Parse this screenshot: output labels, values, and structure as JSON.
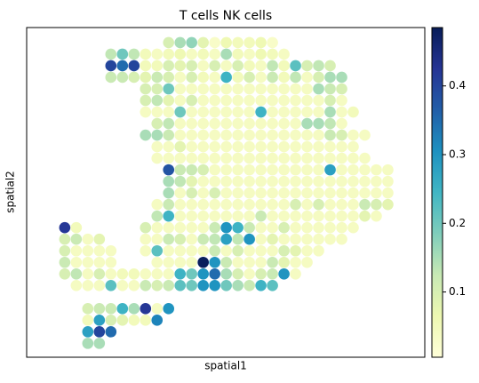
{
  "chart_data": {
    "type": "scatter",
    "title": "T cells   NK cells",
    "xlabel": "spatial1",
    "ylabel": "spatial2",
    "colormap": "YlGnBu",
    "xlim": [
      -3.3,
      31.2
    ],
    "ylim": [
      27.2,
      -1.3
    ],
    "clim": [
      0.005,
      0.485
    ],
    "cticks": [
      0.1,
      0.2,
      0.3,
      0.4
    ],
    "x": [
      9,
      10,
      11,
      12,
      13,
      14,
      15,
      16,
      17,
      18,
      4,
      5,
      6,
      7,
      8,
      9,
      10,
      11,
      12,
      13,
      14,
      15,
      16,
      17,
      18,
      19,
      4,
      5,
      6,
      7,
      8,
      9,
      10,
      11,
      12,
      13,
      14,
      15,
      16,
      17,
      18,
      19,
      20,
      21,
      22,
      23,
      4,
      5,
      6,
      7,
      8,
      9,
      10,
      11,
      12,
      13,
      14,
      15,
      16,
      17,
      18,
      19,
      20,
      21,
      22,
      23,
      24,
      7,
      8,
      9,
      10,
      11,
      12,
      13,
      14,
      15,
      16,
      17,
      18,
      19,
      20,
      21,
      22,
      23,
      24,
      7,
      8,
      9,
      10,
      11,
      12,
      13,
      14,
      15,
      16,
      17,
      18,
      19,
      20,
      21,
      22,
      23,
      24,
      7,
      8,
      9,
      10,
      11,
      12,
      13,
      14,
      15,
      16,
      17,
      18,
      19,
      20,
      21,
      22,
      23,
      24,
      25,
      8,
      9,
      10,
      11,
      12,
      13,
      14,
      15,
      16,
      17,
      18,
      19,
      20,
      21,
      22,
      23,
      24,
      7,
      8,
      9,
      10,
      11,
      12,
      13,
      14,
      15,
      16,
      17,
      18,
      19,
      20,
      21,
      22,
      23,
      24,
      25,
      26,
      8,
      9,
      10,
      11,
      12,
      13,
      14,
      15,
      16,
      17,
      18,
      19,
      20,
      21,
      22,
      23,
      24,
      25,
      8,
      9,
      10,
      11,
      12,
      13,
      14,
      15,
      16,
      17,
      18,
      19,
      20,
      21,
      22,
      23,
      24,
      25,
      26,
      9,
      10,
      11,
      12,
      13,
      14,
      15,
      16,
      17,
      18,
      19,
      20,
      21,
      22,
      23,
      24,
      25,
      26,
      27,
      28,
      9,
      10,
      11,
      12,
      13,
      14,
      15,
      16,
      17,
      18,
      19,
      20,
      21,
      22,
      23,
      24,
      25,
      26,
      27,
      28,
      9,
      10,
      11,
      12,
      13,
      14,
      15,
      16,
      17,
      18,
      19,
      20,
      21,
      22,
      23,
      24,
      25,
      26,
      27,
      28,
      8,
      9,
      10,
      11,
      12,
      13,
      14,
      15,
      16,
      17,
      18,
      19,
      20,
      21,
      22,
      23,
      24,
      25,
      26,
      27,
      28,
      8,
      9,
      10,
      11,
      12,
      13,
      14,
      15,
      16,
      17,
      18,
      19,
      20,
      21,
      22,
      23,
      24,
      25,
      26,
      27,
      0,
      1,
      7,
      8,
      9,
      10,
      11,
      12,
      13,
      14,
      15,
      16,
      17,
      18,
      19,
      20,
      21,
      22,
      23,
      24,
      25,
      0,
      1,
      2,
      3,
      7,
      8,
      9,
      10,
      11,
      12,
      13,
      14,
      15,
      16,
      17,
      18,
      19,
      20,
      21,
      22,
      23,
      24,
      0,
      1,
      2,
      3,
      4,
      7,
      8,
      9,
      10,
      11,
      12,
      13,
      14,
      15,
      16,
      17,
      18,
      19,
      20,
      21,
      22,
      0,
      1,
      2,
      3,
      4,
      8,
      9,
      10,
      11,
      12,
      13,
      14,
      15,
      16,
      17,
      18,
      19,
      20,
      21,
      0,
      1,
      2,
      3,
      4,
      5,
      6,
      7,
      8,
      9,
      10,
      11,
      12,
      13,
      14,
      15,
      16,
      17,
      18,
      19,
      20,
      1,
      2,
      3,
      4,
      5,
      6,
      7,
      8,
      9,
      10,
      11,
      12,
      13,
      14,
      15,
      16,
      17,
      18,
      2,
      3,
      4,
      5,
      6,
      7,
      8,
      9,
      2,
      3,
      4,
      5,
      6,
      7,
      8,
      2,
      3,
      4,
      2,
      3
    ],
    "y": [
      0,
      0,
      0,
      0,
      0,
      0,
      0,
      0,
      0,
      0,
      1,
      1,
      1,
      1,
      1,
      1,
      1,
      1,
      1,
      1,
      1,
      1,
      1,
      1,
      1,
      1,
      2,
      2,
      2,
      2,
      2,
      2,
      2,
      2,
      2,
      2,
      2,
      2,
      2,
      2,
      2,
      2,
      2,
      2,
      2,
      2,
      3,
      3,
      3,
      3,
      3,
      3,
      3,
      3,
      3,
      3,
      3,
      3,
      3,
      3,
      3,
      3,
      3,
      3,
      3,
      3,
      3,
      4,
      4,
      4,
      4,
      4,
      4,
      4,
      4,
      4,
      4,
      4,
      4,
      4,
      4,
      4,
      4,
      4,
      4,
      5,
      5,
      5,
      5,
      5,
      5,
      5,
      5,
      5,
      5,
      5,
      5,
      5,
      5,
      5,
      5,
      5,
      5,
      6,
      6,
      6,
      6,
      6,
      6,
      6,
      6,
      6,
      6,
      6,
      6,
      6,
      6,
      6,
      6,
      6,
      6,
      6,
      7,
      7,
      7,
      7,
      7,
      7,
      7,
      7,
      7,
      7,
      7,
      7,
      7,
      7,
      7,
      7,
      7,
      8,
      8,
      8,
      8,
      8,
      8,
      8,
      8,
      8,
      8,
      8,
      8,
      8,
      8,
      8,
      8,
      8,
      8,
      8,
      8,
      9,
      9,
      9,
      9,
      9,
      9,
      9,
      9,
      9,
      9,
      9,
      9,
      9,
      9,
      9,
      9,
      9,
      9,
      10,
      10,
      10,
      10,
      10,
      10,
      10,
      10,
      10,
      10,
      10,
      10,
      10,
      10,
      10,
      10,
      10,
      10,
      10,
      11,
      11,
      11,
      11,
      11,
      11,
      11,
      11,
      11,
      11,
      11,
      11,
      11,
      11,
      11,
      11,
      11,
      11,
      11,
      11,
      12,
      12,
      12,
      12,
      12,
      12,
      12,
      12,
      12,
      12,
      12,
      12,
      12,
      12,
      12,
      12,
      12,
      12,
      12,
      12,
      13,
      13,
      13,
      13,
      13,
      13,
      13,
      13,
      13,
      13,
      13,
      13,
      13,
      13,
      13,
      13,
      13,
      13,
      13,
      13,
      14,
      14,
      14,
      14,
      14,
      14,
      14,
      14,
      14,
      14,
      14,
      14,
      14,
      14,
      14,
      14,
      14,
      14,
      14,
      14,
      14,
      15,
      15,
      15,
      15,
      15,
      15,
      15,
      15,
      15,
      15,
      15,
      15,
      15,
      15,
      15,
      15,
      15,
      15,
      15,
      15,
      16,
      16,
      16,
      16,
      16,
      16,
      16,
      16,
      16,
      16,
      16,
      16,
      16,
      16,
      16,
      16,
      16,
      16,
      16,
      16,
      16,
      17,
      17,
      17,
      17,
      17,
      17,
      17,
      17,
      17,
      17,
      17,
      17,
      17,
      17,
      17,
      17,
      17,
      17,
      17,
      17,
      17,
      17,
      18,
      18,
      18,
      18,
      18,
      18,
      18,
      18,
      18,
      18,
      18,
      18,
      18,
      18,
      18,
      18,
      18,
      18,
      18,
      18,
      18,
      19,
      19,
      19,
      19,
      19,
      19,
      19,
      19,
      19,
      19,
      19,
      19,
      19,
      19,
      19,
      19,
      19,
      19,
      19,
      20,
      20,
      20,
      20,
      20,
      20,
      20,
      20,
      20,
      20,
      20,
      20,
      20,
      20,
      20,
      20,
      20,
      20,
      20,
      20,
      20,
      21,
      21,
      21,
      21,
      21,
      21,
      21,
      21,
      21,
      21,
      21,
      21,
      21,
      21,
      21,
      21,
      21,
      21,
      23,
      23,
      23,
      23,
      23,
      23,
      23,
      23,
      24,
      24,
      24,
      24,
      24,
      24,
      24,
      25,
      25,
      25,
      26,
      26
    ],
    "values": [
      0.1,
      0.15,
      0.17,
      0.08,
      0.03,
      0.06,
      0.05,
      0.05,
      0.06,
      0.03,
      0.13,
      0.2,
      0.13,
      0.05,
      0.04,
      0.05,
      0.06,
      0.04,
      0.05,
      0.04,
      0.15,
      0.05,
      0.04,
      0.06,
      0.05,
      0.04,
      0.4,
      0.35,
      0.4,
      0.05,
      0.05,
      0.1,
      0.08,
      0.1,
      0.04,
      0.1,
      0.04,
      0.1,
      0.05,
      0.04,
      0.13,
      0.05,
      0.22,
      0.1,
      0.13,
      0.1,
      0.12,
      0.12,
      0.1,
      0.08,
      0.12,
      0.1,
      0.04,
      0.1,
      0.05,
      0.04,
      0.25,
      0.05,
      0.1,
      0.04,
      0.12,
      0.05,
      0.13,
      0.04,
      0.1,
      0.15,
      0.15,
      0.1,
      0.1,
      0.2,
      0.04,
      0.04,
      0.04,
      0.04,
      0.04,
      0.04,
      0.04,
      0.04,
      0.04,
      0.04,
      0.04,
      0.04,
      0.15,
      0.12,
      0.1,
      0.1,
      0.13,
      0.08,
      0.04,
      0.1,
      0.04,
      0.04,
      0.04,
      0.04,
      0.04,
      0.04,
      0.04,
      0.04,
      0.04,
      0.04,
      0.04,
      0.1,
      0.04,
      0.04,
      0.04,
      0.04,
      0.2,
      0.04,
      0.04,
      0.04,
      0.04,
      0.04,
      0.04,
      0.25,
      0.04,
      0.04,
      0.04,
      0.04,
      0.04,
      0.15,
      0.04,
      0.05,
      0.1,
      0.13,
      0.04,
      0.04,
      0.04,
      0.04,
      0.04,
      0.04,
      0.04,
      0.04,
      0.04,
      0.04,
      0.04,
      0.15,
      0.15,
      0.13,
      0.04,
      0.15,
      0.15,
      0.12,
      0.04,
      0.04,
      0.04,
      0.04,
      0.04,
      0.04,
      0.04,
      0.04,
      0.04,
      0.04,
      0.04,
      0.04,
      0.04,
      0.12,
      0.1,
      0.04,
      0.04,
      0.04,
      0.04,
      0.08,
      0.04,
      0.04,
      0.04,
      0.04,
      0.04,
      0.04,
      0.04,
      0.04,
      0.04,
      0.04,
      0.04,
      0.04,
      0.04,
      0.04,
      0.04,
      0.04,
      0.04,
      0.04,
      0.04,
      0.04,
      0.04,
      0.04,
      0.04,
      0.04,
      0.04,
      0.04,
      0.04,
      0.04,
      0.04,
      0.04,
      0.04,
      0.04,
      0.04,
      0.04,
      0.38,
      0.12,
      0.12,
      0.1,
      0.04,
      0.04,
      0.04,
      0.04,
      0.04,
      0.04,
      0.04,
      0.04,
      0.04,
      0.04,
      0.28,
      0.04,
      0.04,
      0.04,
      0.04,
      0.04,
      0.15,
      0.13,
      0.08,
      0.04,
      0.04,
      0.04,
      0.04,
      0.04,
      0.04,
      0.04,
      0.04,
      0.04,
      0.04,
      0.04,
      0.04,
      0.04,
      0.04,
      0.04,
      0.04,
      0.04,
      0.15,
      0.04,
      0.1,
      0.04,
      0.1,
      0.04,
      0.04,
      0.04,
      0.04,
      0.04,
      0.04,
      0.04,
      0.04,
      0.04,
      0.04,
      0.04,
      0.04,
      0.04,
      0.04,
      0.04,
      0.04,
      0.12,
      0.04,
      0.04,
      0.04,
      0.04,
      0.04,
      0.04,
      0.04,
      0.04,
      0.04,
      0.04,
      0.1,
      0.04,
      0.1,
      0.04,
      0.04,
      0.04,
      0.12,
      0.1,
      0.08,
      0.13,
      0.25,
      0.04,
      0.04,
      0.04,
      0.04,
      0.04,
      0.04,
      0.04,
      0.12,
      0.04,
      0.04,
      0.04,
      0.04,
      0.04,
      0.04,
      0.04,
      0.04,
      0.08,
      0.04,
      0.42,
      0.05,
      0.1,
      0.04,
      0.04,
      0.04,
      0.04,
      0.04,
      0.12,
      0.3,
      0.25,
      0.12,
      0.04,
      0.04,
      0.1,
      0.04,
      0.04,
      0.04,
      0.04,
      0.04,
      0.04,
      0.1,
      0.12,
      0.04,
      0.08,
      0.04,
      0.04,
      0.12,
      0.1,
      0.04,
      0.12,
      0.13,
      0.28,
      0.13,
      0.3,
      0.04,
      0.08,
      0.04,
      0.04,
      0.04,
      0.04,
      0.04,
      0.04,
      0.1,
      0.04,
      0.04,
      0.04,
      0.04,
      0.04,
      0.22,
      0.04,
      0.04,
      0.04,
      0.04,
      0.12,
      0.04,
      0.1,
      0.04,
      0.04,
      0.04,
      0.1,
      0.08,
      0.04,
      0.04,
      0.12,
      0.04,
      0.04,
      0.04,
      0.04,
      0.04,
      0.04,
      0.04,
      0.04,
      0.48,
      0.3,
      0.12,
      0.04,
      0.04,
      0.04,
      0.12,
      0.08,
      0.04,
      0.04,
      0.1,
      0.13,
      0.04,
      0.1,
      0.04,
      0.05,
      0.05,
      0.04,
      0.04,
      0.04,
      0.25,
      0.2,
      0.3,
      0.35,
      0.15,
      0.1,
      0.04,
      0.1,
      0.12,
      0.3,
      0.04,
      0.04,
      0.04,
      0.04,
      0.22,
      0.04,
      0.04,
      0.12,
      0.1,
      0.12,
      0.22,
      0.2,
      0.3,
      0.3,
      0.2,
      0.15,
      0.12,
      0.25,
      0.22,
      0.1,
      0.12,
      0.12,
      0.25,
      0.15,
      0.42,
      0.04,
      0.3,
      0.05,
      0.28,
      0.1,
      0.08,
      0.05,
      0.05,
      0.32,
      0.28,
      0.4,
      0.35,
      0.15,
      0.15
    ]
  }
}
